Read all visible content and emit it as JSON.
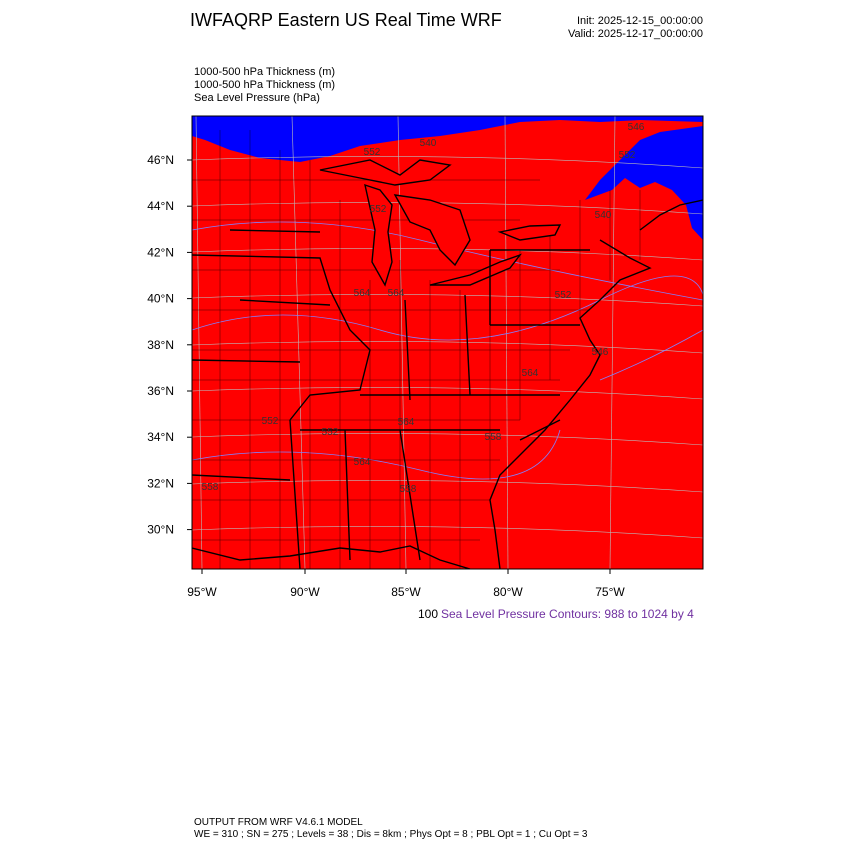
{
  "header": {
    "title": "IWFAQRP Eastern US Real Time WRF",
    "init": "Init: 2025-12-15_00:00:00",
    "valid": "Valid: 2025-12-17_00:00:00"
  },
  "fields": [
    "1000-500 hPa Thickness   (m)",
    "1000-500 hPa Thickness   (m)",
    "Sea Level Pressure   (hPa)"
  ],
  "map": {
    "lat_labels": [
      "46°N",
      "44°N",
      "42°N",
      "40°N",
      "38°N",
      "36°N",
      "34°N",
      "32°N",
      "30°N"
    ],
    "lon_labels": [
      "95°W",
      "90°W",
      "85°W",
      "80°W",
      "75°W"
    ],
    "contour_labels": [
      "540",
      "546",
      "552",
      "552",
      "564",
      "564",
      "552",
      "546",
      "564",
      "552",
      "552",
      "564",
      "558",
      "564",
      "558",
      "558",
      "540",
      "552"
    ]
  },
  "legend": {
    "prefix": "100",
    "text": "Sea Level Pressure Contours: 988 to 1024 by 4"
  },
  "footer": {
    "line1": "OUTPUT FROM WRF V4.6.1 MODEL",
    "line2": "WE = 310 ; SN = 275 ; Levels = 38 ; Dis = 8km ; Phys Opt = 8 ; PBL Opt = 1 ; Cu Opt = 3"
  }
}
